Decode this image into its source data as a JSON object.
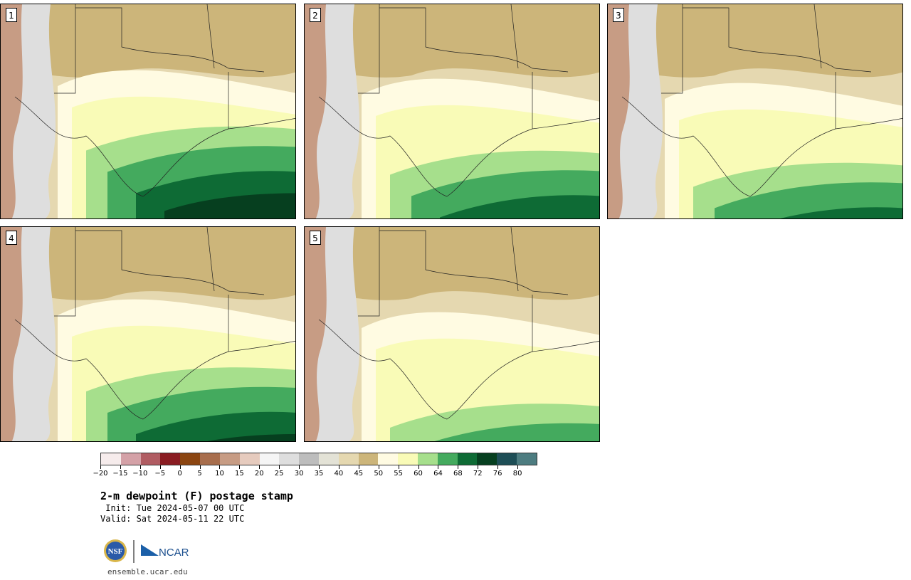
{
  "panels": [
    {
      "label": "1",
      "moisture": 0.75
    },
    {
      "label": "2",
      "moisture": 0.55
    },
    {
      "label": "3",
      "moisture": 0.45
    },
    {
      "label": "4",
      "moisture": 0.6
    },
    {
      "label": "5",
      "moisture": 0.3
    }
  ],
  "colorbar": {
    "colors": [
      "#f6ecec",
      "#d4a1a7",
      "#b05c62",
      "#8a1c22",
      "#8b4511",
      "#a86e4d",
      "#c79c84",
      "#e6cbbe",
      "#f5f5f5",
      "#dedede",
      "#bdbdbd",
      "#e3e2d6",
      "#e5d8b0",
      "#ccb57a",
      "#fffbe2",
      "#f9fbb7",
      "#a6df8c",
      "#44aa5e",
      "#0e6b35",
      "#063f1f",
      "#1e4e56",
      "#4d7c80"
    ],
    "tick_labels": [
      "−20",
      "−15",
      "−10",
      "−5",
      "0",
      "5",
      "10",
      "15",
      "20",
      "25",
      "30",
      "35",
      "40",
      "45",
      "50",
      "55",
      "60",
      "64",
      "68",
      "72",
      "76",
      "80"
    ]
  },
  "title": "2-m dewpoint (F) postage stamp",
  "init_text": " Init: Tue 2024-05-07 00 UTC",
  "valid_text": "Valid: Sat 2024-05-11 22 UTC",
  "logos": {
    "nsf": "NSF",
    "ncar": "NCAR"
  },
  "site": "ensemble.ucar.edu"
}
